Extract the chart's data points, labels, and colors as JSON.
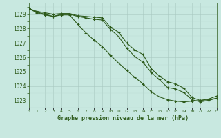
{
  "x": [
    0,
    1,
    2,
    3,
    4,
    5,
    6,
    7,
    8,
    9,
    10,
    11,
    12,
    13,
    14,
    15,
    16,
    17,
    18,
    19,
    20,
    21,
    22,
    23
  ],
  "series1": [
    1029.4,
    1029.2,
    1029.1,
    1029.0,
    1029.05,
    1029.05,
    1028.9,
    1028.85,
    1028.8,
    1028.75,
    1028.1,
    1027.75,
    1027.0,
    1026.5,
    1026.2,
    1025.2,
    1024.7,
    1024.3,
    1024.15,
    1023.85,
    1023.2,
    1023.0,
    1023.1,
    1023.3
  ],
  "series2": [
    1029.4,
    1029.15,
    1029.0,
    1028.85,
    1029.0,
    1029.0,
    1028.85,
    1028.75,
    1028.65,
    1028.6,
    1027.95,
    1027.45,
    1026.65,
    1026.05,
    1025.65,
    1024.95,
    1024.45,
    1023.9,
    1023.8,
    1023.55,
    1023.05,
    1022.9,
    1023.0,
    1023.15
  ],
  "series3": [
    1029.4,
    1029.1,
    1028.95,
    1028.85,
    1028.95,
    1028.95,
    1028.3,
    1027.7,
    1027.2,
    1026.75,
    1026.15,
    1025.6,
    1025.1,
    1024.6,
    1024.15,
    1023.6,
    1023.25,
    1023.05,
    1022.95,
    1022.9,
    1022.95,
    1023.0,
    1023.05,
    1023.15
  ],
  "line_color": "#2d5a1b",
  "bg_color": "#c8e8e0",
  "grid_major_color": "#a8c8c0",
  "grid_minor_color": "#b8d8d0",
  "xlabel": "Graphe pression niveau de la mer (hPa)",
  "ylabel_ticks": [
    1023,
    1024,
    1025,
    1026,
    1027,
    1028,
    1029
  ],
  "xlim": [
    0,
    23
  ],
  "ylim": [
    1022.5,
    1029.8
  ]
}
